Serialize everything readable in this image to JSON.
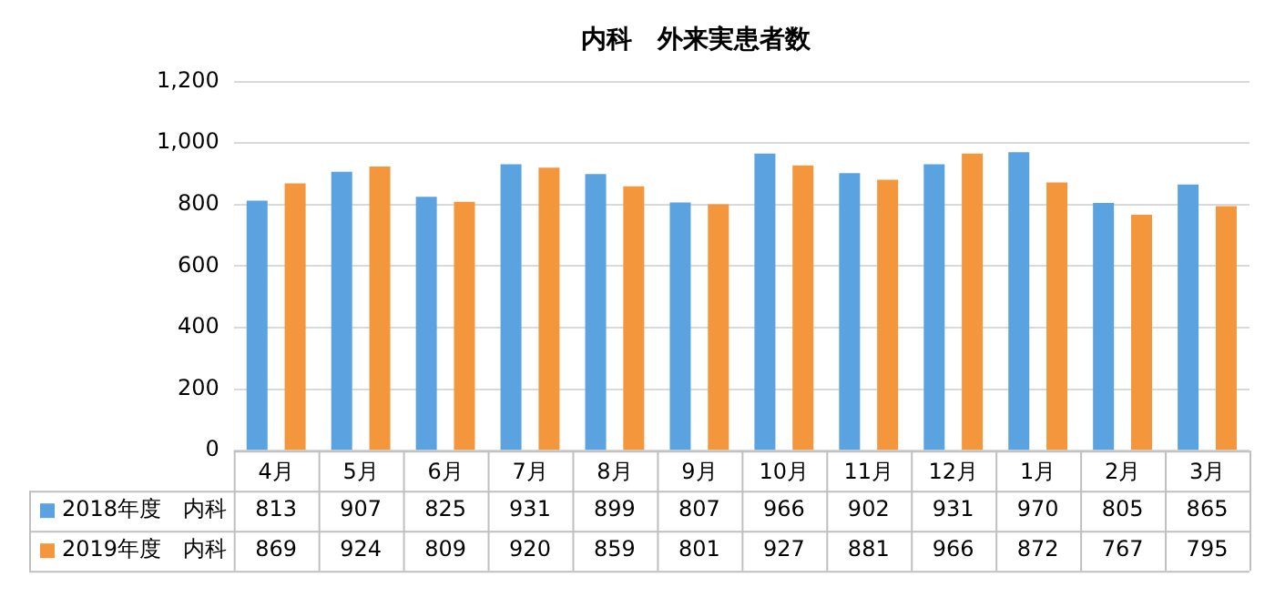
{
  "chart_data": {
    "type": "bar",
    "title": "内科　外来実患者数",
    "categories": [
      "4月",
      "5月",
      "6月",
      "7月",
      "8月",
      "9月",
      "10月",
      "11月",
      "12月",
      "1月",
      "2月",
      "3月"
    ],
    "series": [
      {
        "name": "2018年度　内科",
        "color": "#5ba3e0",
        "values": [
          813,
          907,
          825,
          931,
          899,
          807,
          966,
          902,
          931,
          970,
          805,
          865
        ]
      },
      {
        "name": "2019年度　内科",
        "color": "#f4963c",
        "values": [
          869,
          924,
          809,
          920,
          859,
          801,
          927,
          881,
          966,
          872,
          767,
          795
        ]
      }
    ],
    "ylim": [
      0,
      1200
    ],
    "yticks": [
      0,
      200,
      400,
      600,
      800,
      {
        "value": 1000,
        "label": "1,000"
      },
      {
        "value": 1200,
        "label": "1,200"
      }
    ],
    "grid": "y",
    "legend": "bottom left",
    "data_labels": true
  }
}
